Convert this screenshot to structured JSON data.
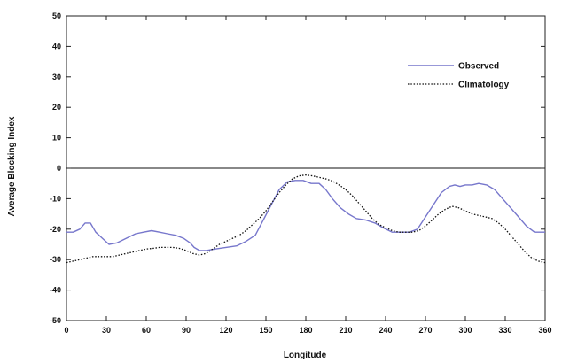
{
  "chart_data": {
    "type": "line",
    "title": "",
    "xlabel": "Longitude",
    "ylabel": "Average Blocking Index",
    "xlim": [
      0,
      360
    ],
    "ylim": [
      -50,
      50
    ],
    "xticks": [
      0,
      30,
      60,
      90,
      120,
      150,
      180,
      210,
      240,
      270,
      300,
      330,
      360
    ],
    "xtick_labels": [
      "0",
      "30",
      "60",
      "90",
      "120",
      "150",
      "180",
      "210",
      "240",
      "270",
      "300",
      "330",
      "360"
    ],
    "yticks": [
      -50,
      -40,
      -30,
      -20,
      -10,
      0,
      10,
      20,
      30,
      40,
      50
    ],
    "ytick_labels": [
      "-50",
      "-40",
      "-30",
      "-20",
      "-10",
      "0",
      "10",
      "20",
      "30",
      "40",
      "50"
    ],
    "grid": false,
    "legend_position": "top-right",
    "zero_line": true,
    "series": [
      {
        "name": "Observed",
        "color": "#7777cc",
        "style": "solid",
        "x": [
          0,
          5,
          10,
          14,
          18,
          22,
          27,
          32,
          38,
          45,
          52,
          58,
          64,
          70,
          76,
          82,
          88,
          93,
          96,
          100,
          105,
          112,
          120,
          128,
          135,
          142,
          148,
          154,
          160,
          166,
          172,
          178,
          184,
          190,
          195,
          200,
          206,
          212,
          218,
          225,
          232,
          238,
          245,
          252,
          258,
          264,
          270,
          276,
          282,
          288,
          292,
          296,
          300,
          305,
          310,
          316,
          322,
          328,
          334,
          340,
          346,
          352,
          358,
          360
        ],
        "y": [
          -21,
          -21,
          -20,
          -18,
          -18,
          -21,
          -23,
          -25,
          -24.5,
          -23,
          -21.5,
          -21,
          -20.5,
          -21,
          -21.5,
          -22,
          -23,
          -24.5,
          -26,
          -27,
          -27,
          -26.5,
          -26,
          -25.5,
          -24,
          -22,
          -17,
          -12,
          -7,
          -4.5,
          -4,
          -4,
          -5,
          -5,
          -7,
          -10,
          -13,
          -15,
          -16.5,
          -17,
          -18,
          -19.5,
          -21,
          -21,
          -21,
          -20,
          -16,
          -12,
          -8,
          -6,
          -5.5,
          -6,
          -5.5,
          -5.5,
          -5,
          -5.5,
          -7,
          -10,
          -13,
          -16,
          -19,
          -21,
          -21,
          -21
        ]
      },
      {
        "name": "Climatology",
        "color": "#111111",
        "style": "dotted",
        "x": [
          0,
          5,
          10,
          15,
          20,
          25,
          30,
          35,
          40,
          45,
          50,
          55,
          60,
          65,
          70,
          75,
          80,
          85,
          90,
          95,
          100,
          105,
          110,
          115,
          120,
          125,
          130,
          135,
          140,
          145,
          150,
          155,
          160,
          165,
          170,
          175,
          180,
          185,
          190,
          195,
          200,
          205,
          210,
          215,
          220,
          225,
          230,
          235,
          240,
          245,
          250,
          255,
          260,
          265,
          270,
          275,
          280,
          285,
          290,
          295,
          300,
          305,
          310,
          315,
          320,
          325,
          330,
          335,
          340,
          345,
          350,
          355,
          360
        ],
        "y": [
          -31,
          -30.5,
          -30,
          -29.5,
          -29,
          -29,
          -29,
          -29,
          -28.5,
          -28,
          -27.5,
          -27,
          -26.5,
          -26.3,
          -26,
          -26,
          -26,
          -26.3,
          -27,
          -28,
          -28.5,
          -28,
          -26.5,
          -25,
          -24,
          -23,
          -22,
          -20.5,
          -18.5,
          -16.5,
          -14,
          -11,
          -8,
          -5.5,
          -3.5,
          -2.5,
          -2.2,
          -2.5,
          -3,
          -3.5,
          -4.2,
          -5.5,
          -7,
          -9,
          -11.5,
          -14,
          -16.5,
          -18.5,
          -19.5,
          -20.5,
          -21,
          -21,
          -21,
          -20.5,
          -19,
          -17,
          -15,
          -13.5,
          -12.5,
          -13,
          -14,
          -15,
          -15.5,
          -16,
          -16.5,
          -18,
          -20,
          -22.5,
          -25,
          -27.5,
          -29.5,
          -30.5,
          -31
        ]
      }
    ]
  }
}
